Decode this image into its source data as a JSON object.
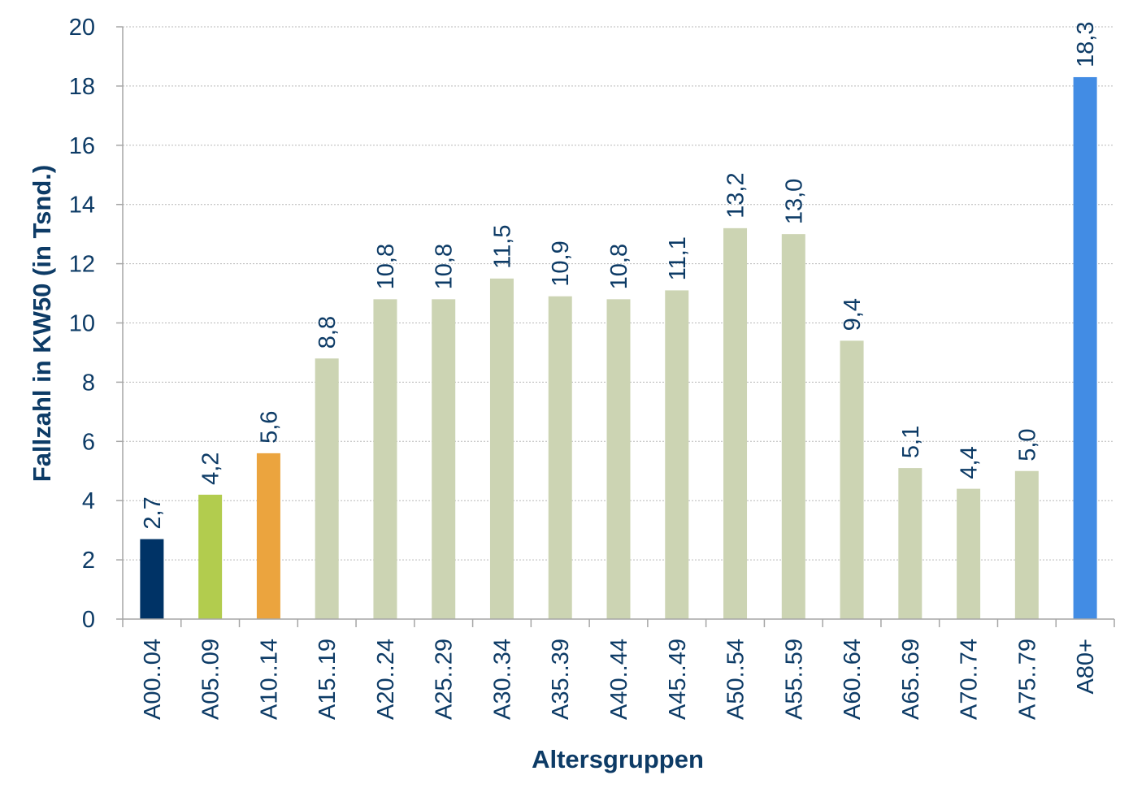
{
  "chart_data": {
    "type": "bar",
    "xlabel": "Altersgruppen",
    "ylabel": "Fallzahl in KW50 (in Tsnd.)",
    "ylim": [
      0,
      20
    ],
    "yticks": [
      0,
      2,
      4,
      6,
      8,
      10,
      12,
      14,
      16,
      18,
      20
    ],
    "grid": true,
    "legend": "none",
    "categories": [
      "A00..04",
      "A05..09",
      "A10..14",
      "A15..19",
      "A20..24",
      "A25..29",
      "A30..34",
      "A35..39",
      "A40..44",
      "A45..49",
      "A50..54",
      "A55..59",
      "A60..64",
      "A65..69",
      "A70..74",
      "A75..79",
      "A80+"
    ],
    "values": [
      2.7,
      4.2,
      5.6,
      8.8,
      10.8,
      10.8,
      11.5,
      10.9,
      10.8,
      11.1,
      13.2,
      13.0,
      9.4,
      5.1,
      4.4,
      5.0,
      18.3
    ],
    "value_labels": [
      "2,7",
      "4,2",
      "5,6",
      "8,8",
      "10,8",
      "10,8",
      "11,5",
      "10,9",
      "10,8",
      "11,1",
      "13,2",
      "13,0",
      "9,4",
      "5,1",
      "4,4",
      "5,0",
      "18,3"
    ],
    "colors": [
      "#003366",
      "#b2cc4e",
      "#eba43e",
      "#ccd4b3",
      "#ccd4b3",
      "#ccd4b3",
      "#ccd4b3",
      "#ccd4b3",
      "#ccd4b3",
      "#ccd4b3",
      "#ccd4b3",
      "#ccd4b3",
      "#ccd4b3",
      "#ccd4b3",
      "#ccd4b3",
      "#ccd4b3",
      "#428ce4"
    ]
  }
}
